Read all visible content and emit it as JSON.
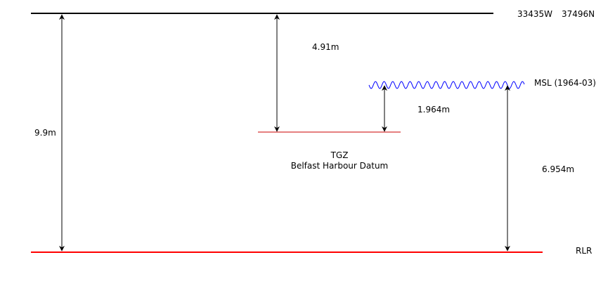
{
  "diagram": {
    "coords": {
      "easting": "33435W",
      "northing": "37496N"
    },
    "labels": {
      "top_to_tgz": "4.91m",
      "total_height": "9.9m",
      "tgz_to_msl": "1.964m",
      "msl_to_rlr": "6.954m",
      "msl": "MSL (1964-03)",
      "rlr": "RLR",
      "tgz_line1": "TGZ",
      "tgz_line2": "Belfast Harbour Datum"
    },
    "colors": {
      "top_datum": "#000000",
      "rlr_datum": "#ff0000",
      "tgz_datum": "#cc0000",
      "msl_wave": "#0000ff",
      "arrows": "#000000"
    }
  }
}
